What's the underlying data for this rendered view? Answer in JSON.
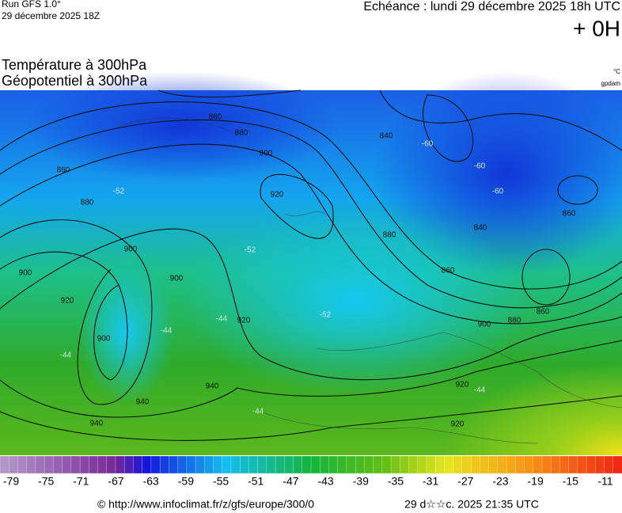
{
  "header": {
    "run": "Run GFS 1.0°",
    "run_date": "29 décembre 2025 18Z",
    "echeance": "Echéance : lundi 29 décembre 2025 18h UTC",
    "offset": "+ 0H"
  },
  "titles": [
    "Température à 300hPa",
    "Géopotentiel à 300hPa"
  ],
  "units": [
    "°C",
    "gpdam"
  ],
  "map": {
    "geopotential_labels": [
      "860",
      "880",
      "860",
      "880",
      "900",
      "920",
      "900",
      "920",
      "900",
      "840",
      "860",
      "880",
      "900",
      "860",
      "880",
      "900",
      "920",
      "940",
      "940",
      "920",
      "900",
      "920",
      "940",
      "840",
      "860"
    ],
    "temperature_labels": [
      "-60",
      "-60",
      "-60",
      "-52",
      "-52",
      "-44",
      "-44",
      "-44",
      "-52",
      "-44",
      "-44"
    ]
  },
  "scale": {
    "ticks": [
      -79,
      -75,
      -71,
      -67,
      -63,
      -59,
      -55,
      -51,
      -47,
      -43,
      -39,
      -35,
      -31,
      -27,
      -23,
      -19,
      -15,
      -11
    ]
  },
  "footer": {
    "url": "© http://www.infoclimat.fr/z/gfs/europe/300/0",
    "date": "29 d☆☆c. 2025 21:35 UTC"
  }
}
